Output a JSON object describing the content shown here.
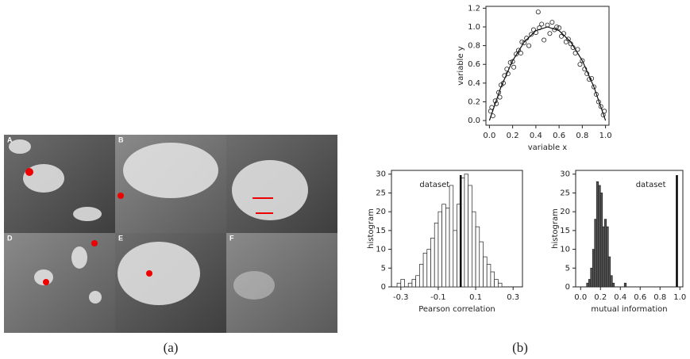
{
  "figure": {
    "caption_a": "(a)",
    "caption_b": "(b)"
  },
  "images": {
    "panel_labels": [
      "A",
      "B",
      "D",
      "E",
      "F"
    ]
  },
  "chart_data": [
    {
      "type": "scatter",
      "x_label": "variable x",
      "y_label": "variable y",
      "x": [
        0.01,
        0.02,
        0.03,
        0.05,
        0.06,
        0.08,
        0.09,
        0.1,
        0.12,
        0.13,
        0.15,
        0.16,
        0.18,
        0.2,
        0.21,
        0.23,
        0.25,
        0.27,
        0.28,
        0.3,
        0.32,
        0.34,
        0.36,
        0.38,
        0.4,
        0.42,
        0.43,
        0.45,
        0.47,
        0.5,
        0.52,
        0.54,
        0.56,
        0.58,
        0.6,
        0.62,
        0.64,
        0.66,
        0.68,
        0.7,
        0.72,
        0.74,
        0.76,
        0.78,
        0.8,
        0.82,
        0.84,
        0.86,
        0.88,
        0.9,
        0.92,
        0.94,
        0.96,
        0.98,
        0.99
      ],
      "y": [
        0.1,
        0.14,
        0.05,
        0.21,
        0.18,
        0.3,
        0.25,
        0.38,
        0.4,
        0.48,
        0.55,
        0.5,
        0.62,
        0.63,
        0.57,
        0.71,
        0.75,
        0.72,
        0.84,
        0.83,
        0.88,
        0.8,
        0.92,
        0.97,
        0.94,
        1.16,
        0.99,
        1.03,
        0.86,
        1.02,
        0.93,
        1.05,
        0.97,
        1.0,
        0.99,
        0.9,
        0.93,
        0.84,
        0.87,
        0.82,
        0.78,
        0.72,
        0.76,
        0.6,
        0.64,
        0.55,
        0.5,
        0.44,
        0.45,
        0.36,
        0.28,
        0.2,
        0.15,
        0.06,
        0.1
      ],
      "line": {
        "x": [
          0,
          0.1,
          0.2,
          0.3,
          0.4,
          0.5,
          0.6,
          0.7,
          0.8,
          0.9,
          1.0
        ],
        "y": [
          0,
          0.36,
          0.64,
          0.84,
          0.96,
          1.0,
          0.96,
          0.84,
          0.64,
          0.36,
          0
        ]
      },
      "xlim": [
        -0.03,
        1.03
      ],
      "ylim": [
        -0.05,
        1.22
      ],
      "xticks": [
        {
          "value": 0,
          "label": "0.0"
        },
        0.2,
        0.4,
        0.6,
        0.8,
        {
          "value": 1,
          "label": "1.0"
        }
      ],
      "yticks": [
        {
          "value": 0,
          "label": "0.0"
        },
        0.2,
        0.4,
        0.6,
        0.8,
        {
          "value": 1,
          "label": "1.0"
        },
        1.2
      ]
    },
    {
      "type": "histogram",
      "x_label": "Pearson correlation",
      "y_label": "histogram",
      "bar_color": "#ffffff",
      "bins": [
        -0.32,
        -0.3,
        -0.28,
        -0.26,
        -0.24,
        -0.22,
        -0.2,
        -0.18,
        -0.16,
        -0.14,
        -0.12,
        -0.1,
        -0.08,
        -0.06,
        -0.04,
        -0.02,
        0,
        0.02,
        0.04,
        0.06,
        0.08,
        0.1,
        0.12,
        0.14,
        0.16,
        0.18,
        0.2,
        0.22,
        0.24
      ],
      "counts": [
        1,
        2,
        0,
        1,
        2,
        3,
        6,
        9,
        10,
        13,
        17,
        20,
        22,
        21,
        27,
        15,
        22,
        29,
        30,
        27,
        20,
        16,
        12,
        8,
        6,
        4,
        2,
        1
      ],
      "reference": {
        "x": 0.02,
        "label": "dataset"
      },
      "xlim": [
        -0.35,
        0.35
      ],
      "ylim": [
        0,
        31
      ],
      "xticks": [
        -0.3,
        -0.1,
        0.1,
        0.3
      ],
      "yticks": [
        0,
        5,
        10,
        15,
        20,
        25,
        30
      ]
    },
    {
      "type": "histogram",
      "x_label": "mutual information",
      "y_label": "histogram",
      "bar_color": "#555555",
      "bins": [
        0.06,
        0.08,
        0.1,
        0.12,
        0.14,
        0.16,
        0.18,
        0.2,
        0.22,
        0.24,
        0.26,
        0.28,
        0.3,
        0.32,
        0.34,
        0.36,
        0.38,
        0.4,
        0.42,
        0.44,
        0.46
      ],
      "counts": [
        1,
        2,
        5,
        10,
        18,
        28,
        27,
        25,
        16,
        18,
        16,
        8,
        3,
        1,
        0,
        0,
        0,
        0,
        0,
        1
      ],
      "reference": {
        "x": 0.97,
        "label": "dataset"
      },
      "xlim": [
        -0.05,
        1.03
      ],
      "ylim": [
        0,
        31
      ],
      "xticks": [
        {
          "value": 0,
          "label": "0.0"
        },
        0.2,
        0.4,
        0.6,
        0.8,
        {
          "value": 1,
          "label": "1.0"
        }
      ],
      "yticks": [
        0,
        5,
        10,
        15,
        20,
        25,
        30
      ]
    }
  ]
}
